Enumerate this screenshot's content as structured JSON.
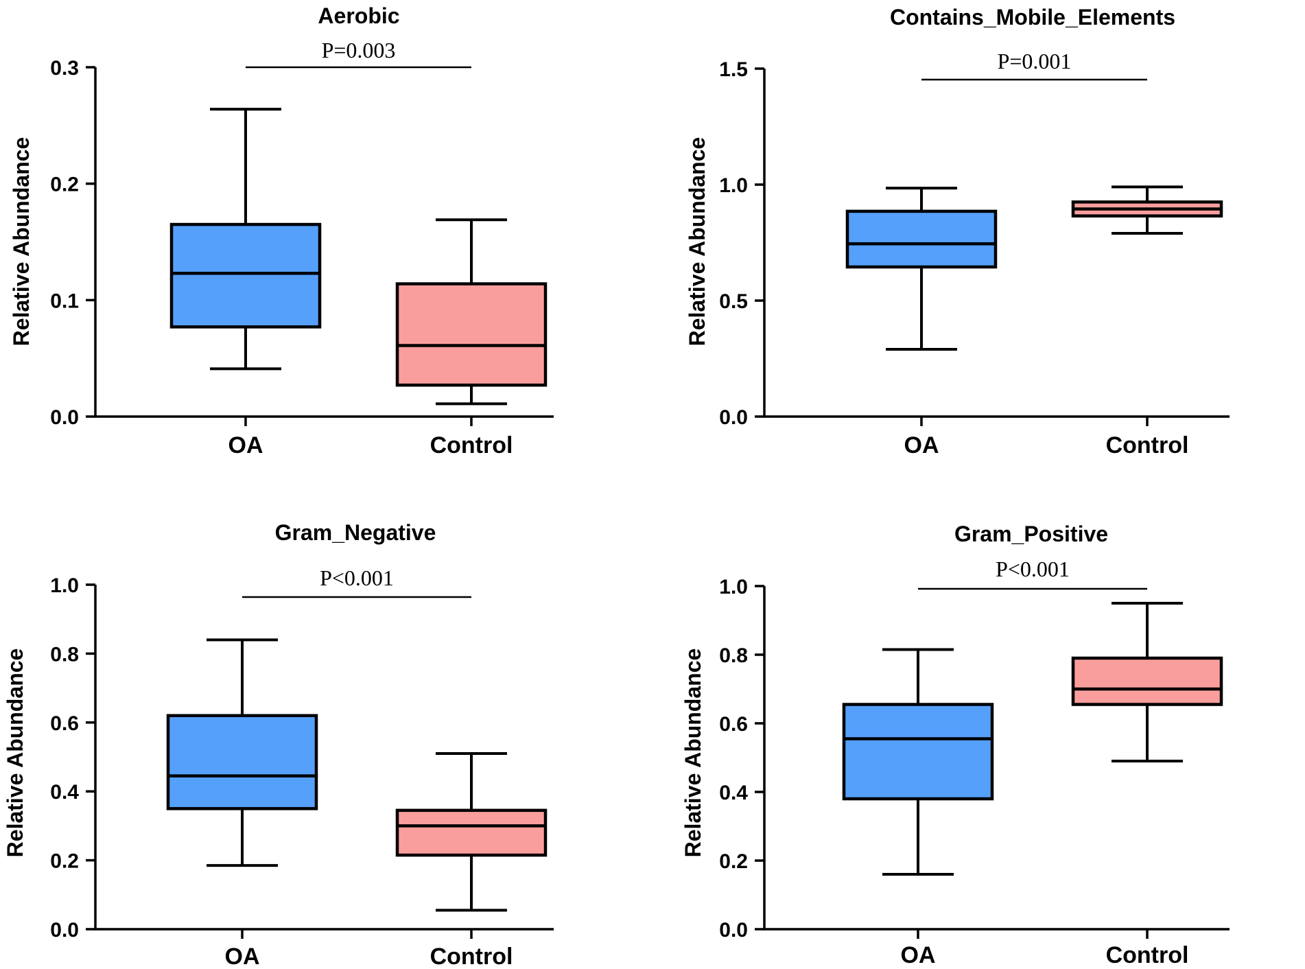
{
  "chart_data": [
    {
      "type": "box",
      "title": "Aerobic",
      "ylabel": "Relative Abundance",
      "categories": [
        "OA",
        "Control"
      ],
      "ylim": [
        0,
        0.3
      ],
      "yticks": [
        "0.0",
        "0.1",
        "0.2",
        "0.3"
      ],
      "ytick_values": [
        0,
        0.1,
        0.2,
        0.3
      ],
      "p_value": "P=0.003",
      "boxes": [
        {
          "group": "OA",
          "min": 0.041,
          "q1": 0.077,
          "median": 0.123,
          "q3": 0.165,
          "max": 0.264,
          "color": "#55A0FB"
        },
        {
          "group": "Control",
          "min": 0.011,
          "q1": 0.027,
          "median": 0.061,
          "q3": 0.114,
          "max": 0.169,
          "color": "#FA9E9D"
        }
      ]
    },
    {
      "type": "box",
      "title": "Contains_Mobile_Elements",
      "ylabel": "Relative Abundance",
      "categories": [
        "OA",
        "Control"
      ],
      "ylim": [
        0,
        1.5
      ],
      "yticks": [
        "0.0",
        "0.5",
        "1.0",
        "1.5"
      ],
      "ytick_values": [
        0,
        0.5,
        1.0,
        1.5
      ],
      "p_value": "P=0.001",
      "boxes": [
        {
          "group": "OA",
          "min": 0.29,
          "q1": 0.645,
          "median": 0.745,
          "q3": 0.885,
          "max": 0.985,
          "color": "#55A0FB"
        },
        {
          "group": "Control",
          "min": 0.79,
          "q1": 0.865,
          "median": 0.895,
          "q3": 0.925,
          "max": 0.99,
          "color": "#FA9E9D"
        }
      ]
    },
    {
      "type": "box",
      "title": "Gram_Negative",
      "ylabel": "Relative Abundance",
      "categories": [
        "OA",
        "Control"
      ],
      "ylim": [
        0,
        1.0
      ],
      "yticks": [
        "0.0",
        "0.2",
        "0.4",
        "0.6",
        "0.8",
        "1.0"
      ],
      "ytick_values": [
        0,
        0.2,
        0.4,
        0.6,
        0.8,
        1.0
      ],
      "p_value": "P<0.001",
      "boxes": [
        {
          "group": "OA",
          "min": 0.185,
          "q1": 0.35,
          "median": 0.445,
          "q3": 0.62,
          "max": 0.84,
          "color": "#55A0FB"
        },
        {
          "group": "Control",
          "min": 0.055,
          "q1": 0.215,
          "median": 0.3,
          "q3": 0.345,
          "max": 0.51,
          "color": "#FA9E9D"
        }
      ]
    },
    {
      "type": "box",
      "title": "Gram_Positive",
      "ylabel": "Relative Abundance",
      "categories": [
        "OA",
        "Control"
      ],
      "ylim": [
        0,
        1.0
      ],
      "yticks": [
        "0.0",
        "0.2",
        "0.4",
        "0.6",
        "0.8",
        "1.0"
      ],
      "ytick_values": [
        0,
        0.2,
        0.4,
        0.6,
        0.8,
        1.0
      ],
      "p_value": "P<0.001",
      "boxes": [
        {
          "group": "OA",
          "min": 0.16,
          "q1": 0.38,
          "median": 0.555,
          "q3": 0.655,
          "max": 0.815,
          "color": "#55A0FB"
        },
        {
          "group": "Control",
          "min": 0.49,
          "q1": 0.655,
          "median": 0.7,
          "q3": 0.79,
          "max": 0.95,
          "color": "#FA9E9D"
        }
      ]
    }
  ]
}
